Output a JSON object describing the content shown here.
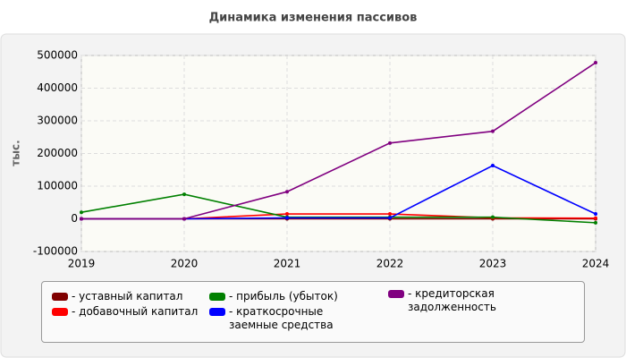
{
  "chart_data": {
    "type": "line",
    "title": "Динамика изменения пассивов",
    "y_label": "тыс.",
    "x": [
      2019,
      2020,
      2021,
      2022,
      2023,
      2024
    ],
    "xlim": [
      2019,
      2024
    ],
    "xticks": [
      2019,
      2020,
      2021,
      2022,
      2023,
      2024
    ],
    "ylim": [
      -100000,
      500000
    ],
    "yticks": [
      -100000,
      0,
      100000,
      200000,
      300000,
      400000,
      500000
    ],
    "grid": true,
    "series": [
      {
        "name": "- уставный капитал",
        "color": "#800000",
        "values": [
          0,
          0,
          0,
          0,
          0,
          0
        ]
      },
      {
        "name": "- добавочный капитал",
        "color": "#ff0000",
        "values": [
          0,
          0,
          15000,
          15000,
          3000,
          2000
        ]
      },
      {
        "name": "- прибыль (убыток)",
        "color": "#008000",
        "values": [
          20000,
          75000,
          5000,
          5000,
          5000,
          -12000
        ]
      },
      {
        "name": "- краткосрочные заемные средства",
        "color": "#0000ff",
        "values": [
          0,
          0,
          3000,
          3000,
          163000,
          15000
        ]
      },
      {
        "name": "- кредиторская задолженность",
        "color": "#800080",
        "values": [
          0,
          0,
          83000,
          232000,
          268000,
          478000
        ]
      }
    ]
  }
}
